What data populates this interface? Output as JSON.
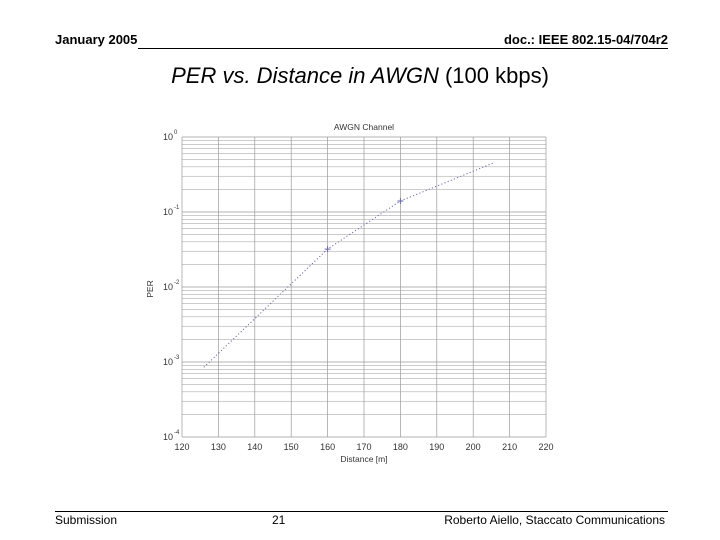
{
  "header": {
    "date": "January 2005",
    "doc_id": "doc.: IEEE 802.15-04/704r2"
  },
  "slide": {
    "title_main": "PER vs. Distance in AWGN",
    "title_suffix": " (100 kbps)"
  },
  "footer": {
    "left": "Submission",
    "page_number": "21",
    "author": "Roberto Aiello, Staccato Communications"
  },
  "chart_data": {
    "type": "line",
    "title": "AWGN Channel",
    "xlabel": "Distance [m]",
    "ylabel": "PER",
    "xlim": [
      120,
      220
    ],
    "ylim": [
      0.0001,
      1
    ],
    "y_scale": "log",
    "grid": true,
    "x_ticks": [
      120,
      130,
      140,
      150,
      160,
      170,
      180,
      190,
      200,
      210,
      220
    ],
    "y_ticks": [
      {
        "value": 1,
        "base": "10",
        "exp": "0"
      },
      {
        "value": 0.1,
        "base": "10",
        "exp": "-1"
      },
      {
        "value": 0.01,
        "base": "10",
        "exp": "-2"
      },
      {
        "value": 0.001,
        "base": "10",
        "exp": "-3"
      },
      {
        "value": 0.0001,
        "base": "10",
        "exp": "-4"
      }
    ],
    "series": [
      {
        "line_style": "dotted",
        "marker": "+",
        "color": "#6a6aa8",
        "x": [
          126,
          160,
          180,
          206
        ],
        "y": [
          0.00085,
          0.032,
          0.14,
          0.46
        ]
      }
    ]
  }
}
